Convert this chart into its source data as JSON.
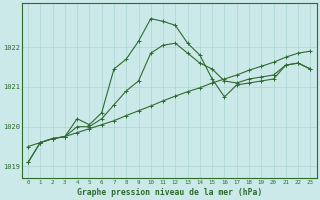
{
  "title": "Graphe pression niveau de la mer (hPa)",
  "x_labels": [
    "0",
    "1",
    "2",
    "3",
    "4",
    "5",
    "6",
    "7",
    "8",
    "9",
    "10",
    "11",
    "12",
    "13",
    "14",
    "15",
    "16",
    "17",
    "18",
    "19",
    "20",
    "21",
    "22",
    "23"
  ],
  "ylim": [
    1018.7,
    1023.1
  ],
  "yticks": [
    1019,
    1020,
    1021,
    1022
  ],
  "bg_color": "#cce9e9",
  "grid_color": "#aad4d4",
  "line_color": "#2d6b2d",
  "line1": [
    1019.1,
    1019.6,
    1019.7,
    1019.75,
    1020.2,
    1020.05,
    1020.35,
    1021.45,
    1021.7,
    1022.15,
    1022.72,
    1022.65,
    1022.55,
    1022.1,
    1021.8,
    1021.2,
    1020.75,
    1021.05,
    1021.1,
    1021.15,
    1021.2,
    1021.55,
    1021.6,
    1021.45
  ],
  "line2": [
    1019.5,
    1019.6,
    1019.7,
    1019.75,
    1019.85,
    1019.95,
    1020.05,
    1020.15,
    1020.28,
    1020.4,
    1020.52,
    1020.65,
    1020.77,
    1020.88,
    1020.98,
    1021.1,
    1021.2,
    1021.3,
    1021.42,
    1021.52,
    1021.62,
    1021.75,
    1021.85,
    1021.9
  ],
  "line3": [
    1019.1,
    1019.6,
    1019.7,
    1019.75,
    1020.0,
    1020.0,
    1020.2,
    1020.55,
    1020.9,
    1021.15,
    1021.85,
    1022.05,
    1022.1,
    1021.85,
    1021.6,
    1021.45,
    1021.15,
    1021.1,
    1021.2,
    1021.25,
    1021.3,
    1021.55,
    1021.6,
    1021.45
  ],
  "figsize": [
    3.2,
    2.0
  ],
  "dpi": 100
}
